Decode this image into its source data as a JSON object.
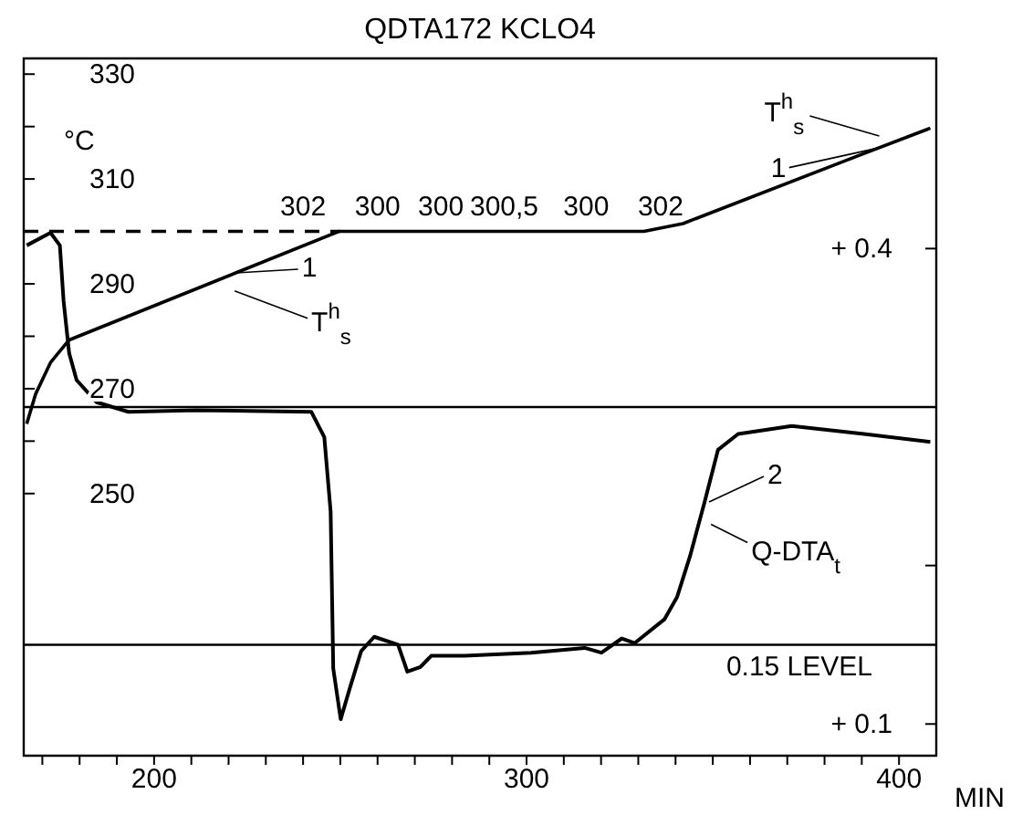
{
  "chart_data": {
    "type": "line",
    "title": "QDTA172 KCLO4",
    "xlabel": "MIN",
    "ylabel": "°C",
    "xlim": [
      165,
      410
    ],
    "xticks": [
      {
        "value": 170,
        "label": null
      },
      {
        "value": 180,
        "label": null
      },
      {
        "value": 190,
        "label": null
      },
      200,
      {
        "value": 210,
        "label": null
      },
      {
        "value": 220,
        "label": null
      },
      {
        "value": 230,
        "label": null
      },
      {
        "value": 240,
        "label": null
      },
      {
        "value": 250,
        "label": null
      },
      {
        "value": 260,
        "label": null
      },
      {
        "value": 270,
        "label": null
      },
      {
        "value": 280,
        "label": null
      },
      {
        "value": 290,
        "label": null
      },
      300,
      {
        "value": 310,
        "label": null
      },
      {
        "value": 320,
        "label": null
      },
      {
        "value": 330,
        "label": null
      },
      {
        "value": 340,
        "label": null
      },
      {
        "value": 350,
        "label": null
      },
      {
        "value": 360,
        "label": null
      },
      {
        "value": 370,
        "label": null
      },
      {
        "value": 380,
        "label": null
      },
      {
        "value": 390,
        "label": null
      },
      400
    ],
    "ylim": [
      200,
      333
    ],
    "yticks": [
      250,
      {
        "value": 260,
        "label": null
      },
      270,
      {
        "value": 280,
        "label": null
      },
      290,
      {
        "value": 300,
        "label": null
      },
      310,
      {
        "value": 320,
        "label": null
      },
      330
    ],
    "y2lim": [
      0.08,
      0.52
    ],
    "y2ticks": [
      {
        "value": 0.1,
        "label": "+ 0.1"
      },
      {
        "value": 0.2,
        "label": null
      },
      {
        "value": 0.3,
        "label": null
      },
      {
        "value": 0.4,
        "label": "+ 0.4"
      }
    ],
    "marker": "none",
    "series": [
      {
        "name": "T$^{h}$$_{s}$",
        "axis": "y",
        "color": "#000000",
        "x": [
          165.8,
          168.2,
          172.2,
          177.2,
          249.6,
          331.5,
          342,
          390,
          408.4
        ],
        "values": [
          263.3,
          269,
          275,
          279.3,
          300,
          300,
          301.5,
          314.7,
          319.7
        ]
      },
      {
        "name": "Q-DTA$_{t}$",
        "axis": "y2",
        "color": "#000000",
        "x": [
          165.8,
          172.2,
          174.7,
          175.7,
          177.2,
          179.2,
          184.6,
          193.1,
          211.4,
          242.2,
          245.7,
          247.4,
          248.1,
          250.1,
          252.6,
          255.6,
          259.1,
          265.5,
          268,
          271.5,
          274.4,
          283.4,
          301.2,
          315.6,
          320.1,
          325.6,
          329,
          337,
          340.4,
          343.9,
          347.9,
          351.4,
          356.8,
          371.2,
          390.6,
          408.4
        ],
        "values": [
          0.402,
          0.41,
          0.402,
          0.367,
          0.334,
          0.317,
          0.303,
          0.297,
          0.298,
          0.297,
          0.281,
          0.234,
          0.135,
          0.103,
          0.123,
          0.146,
          0.155,
          0.15,
          0.133,
          0.136,
          0.143,
          0.143,
          0.145,
          0.148,
          0.145,
          0.154,
          0.151,
          0.166,
          0.18,
          0.206,
          0.241,
          0.273,
          0.283,
          0.288,
          0.283,
          0.278
        ]
      },
      {
        "type": "line",
        "axis": "y",
        "color": "#000000",
        "line_style": "dashed",
        "x": [
          165,
          250
        ],
        "values": [
          300,
          300
        ]
      }
    ],
    "ref_lines": [
      {
        "axis": "y2",
        "value": 0.3,
        "color": "#000000"
      },
      {
        "axis": "y2",
        "value": 0.15,
        "label": "0.15 LEVEL",
        "color": "#000000"
      }
    ],
    "annotations": [
      "302",
      "300",
      "300",
      "300,5",
      "300",
      "302",
      {
        "text": "1",
        "x": 222,
        "y": 292.1
      },
      {
        "text": "1",
        "x": 395,
        "y": 316
      },
      {
        "text": "2",
        "x": 349,
        "y": 248.4
      }
    ]
  }
}
